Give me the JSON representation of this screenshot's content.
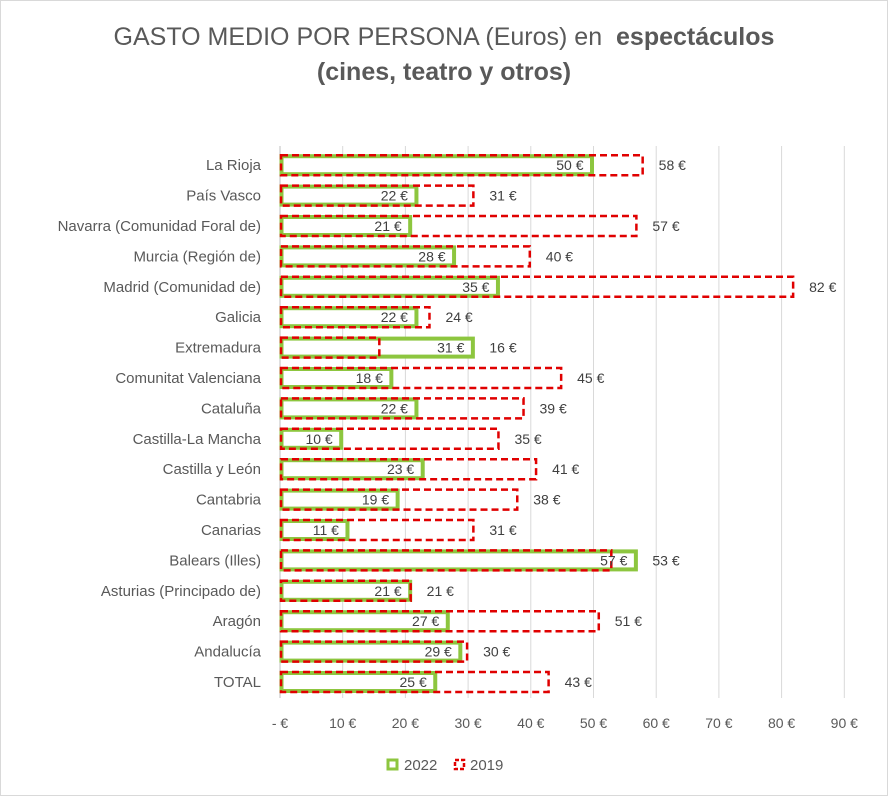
{
  "chart_data": {
    "type": "bar",
    "orientation": "horizontal",
    "title_parts": {
      "line1_regular": "GASTO MEDIO POR PERSONA (Euros) en",
      "line1_bold": "espectáculos",
      "line2_bold": "(cines, teatro y otros)"
    },
    "categories": [
      "La Rioja",
      "País Vasco",
      "Navarra (Comunidad Foral de)",
      "Murcia (Región de)",
      "Madrid (Comunidad de)",
      "Galicia",
      "Extremadura",
      "Comunitat Valenciana",
      "Cataluña",
      "Castilla-La Mancha",
      "Castilla y León",
      "Cantabria",
      "Canarias",
      "Balears (Illes)",
      "Asturias (Principado de)",
      "Aragón",
      "Andalucía",
      "TOTAL"
    ],
    "series": [
      {
        "name": "2022",
        "color": "#8dc63f",
        "values": [
          50,
          22,
          21,
          28,
          35,
          22,
          31,
          18,
          22,
          10,
          23,
          19,
          11,
          57,
          21,
          27,
          29,
          25
        ],
        "labels": [
          "50 €",
          "22 €",
          "21 €",
          "28 €",
          "35 €",
          "22 €",
          "31 €",
          "18 €",
          "22 €",
          "10 €",
          "23 €",
          "19 €",
          "11 €",
          "57 €",
          "21 €",
          "27 €",
          "29 €",
          "25 €"
        ]
      },
      {
        "name": "2019",
        "color": "#e00000",
        "values": [
          58,
          31,
          57,
          40,
          82,
          24,
          16,
          45,
          39,
          35,
          41,
          38,
          31,
          53,
          21,
          51,
          30,
          43
        ],
        "labels": [
          "58 €",
          "31 €",
          "57 €",
          "40 €",
          "82 €",
          "24 €",
          "16 €",
          "45 €",
          "39 €",
          "35 €",
          "41 €",
          "38 €",
          "31 €",
          "53 €",
          "21 €",
          "51 €",
          "30 €",
          "43 €"
        ]
      }
    ],
    "xlim": [
      0,
      90
    ],
    "x_ticks": [
      0,
      10,
      20,
      30,
      40,
      50,
      60,
      70,
      80,
      90
    ],
    "x_tick_labels": [
      "-   €",
      "10 €",
      "20 €",
      "30 €",
      "40 €",
      "50 €",
      "60 €",
      "70 €",
      "80 €",
      "90 €"
    ],
    "grid": "vertical",
    "legend_position": "bottom"
  }
}
